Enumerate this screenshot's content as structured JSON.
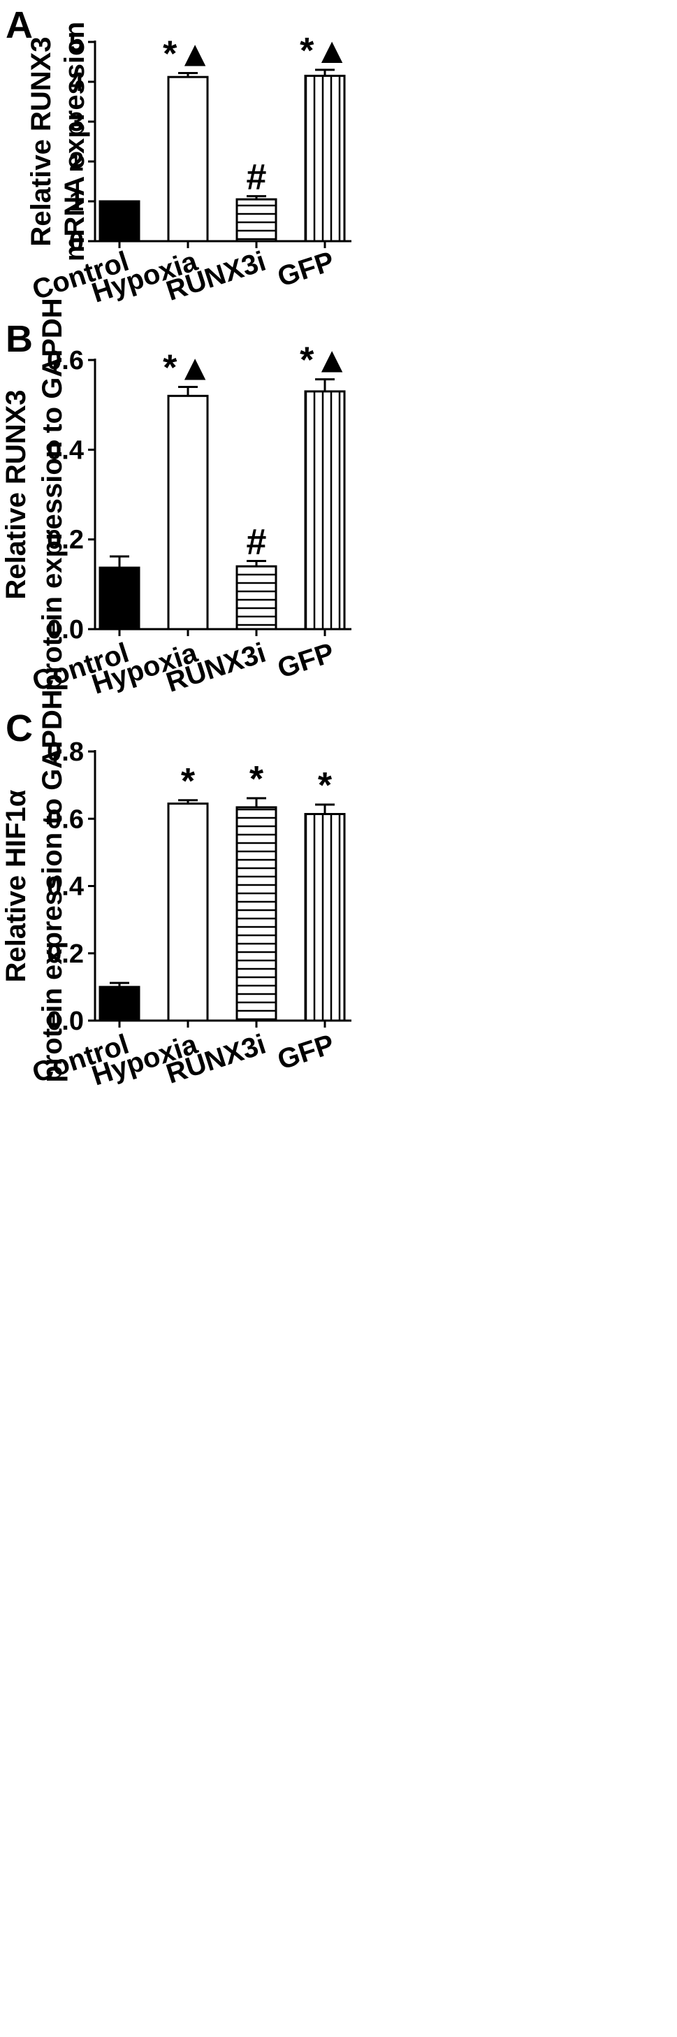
{
  "chart_data": [
    {
      "panel": "A",
      "type": "bar",
      "ylabel": [
        "Relative RUNX3",
        "mRNA expression"
      ],
      "ylim": [
        0,
        5
      ],
      "yticks": [
        "0",
        "1",
        "2",
        "3",
        "4",
        "5"
      ],
      "categories": [
        "Control",
        "Hypoxia",
        "RUNX3i",
        "GFP"
      ],
      "values": [
        1.0,
        4.12,
        1.05,
        4.15
      ],
      "errors": [
        0.0,
        0.1,
        0.08,
        0.15
      ],
      "patterns": [
        "solid",
        "open",
        "horizontal",
        "vertical"
      ],
      "annotations": [
        "",
        "*▲",
        "#",
        "*▲"
      ],
      "grid": false
    },
    {
      "panel": "B",
      "type": "bar",
      "ylabel": [
        "Relative RUNX3",
        "protein expression to GAPDH"
      ],
      "ylim": [
        0,
        0.6
      ],
      "yticks": [
        "0.0",
        "0.2",
        "0.4",
        "0.6"
      ],
      "categories": [
        "Control",
        "Hypoxia",
        "RUNX3i",
        "GFP"
      ],
      "values": [
        0.137,
        0.52,
        0.14,
        0.53
      ],
      "errors": [
        0.025,
        0.02,
        0.012,
        0.027
      ],
      "patterns": [
        "solid",
        "open",
        "horizontal",
        "vertical"
      ],
      "annotations": [
        "",
        "*▲",
        "#",
        "*▲"
      ],
      "grid": false
    },
    {
      "panel": "C",
      "type": "bar",
      "ylabel": [
        "Relative HIF1α",
        "protein expression to GAPDH"
      ],
      "ylim": [
        0,
        0.8
      ],
      "yticks": [
        "0.0",
        "0.2",
        "0.4",
        "0.6",
        "0.8"
      ],
      "categories": [
        "Control",
        "Hypoxia",
        "RUNX3i",
        "GFP"
      ],
      "values": [
        0.1,
        0.645,
        0.634,
        0.614
      ],
      "errors": [
        0.012,
        0.01,
        0.027,
        0.028
      ],
      "patterns": [
        "solid",
        "open",
        "horizontal",
        "vertical"
      ],
      "annotations": [
        "",
        "*",
        "*",
        "*"
      ],
      "grid": false
    }
  ]
}
